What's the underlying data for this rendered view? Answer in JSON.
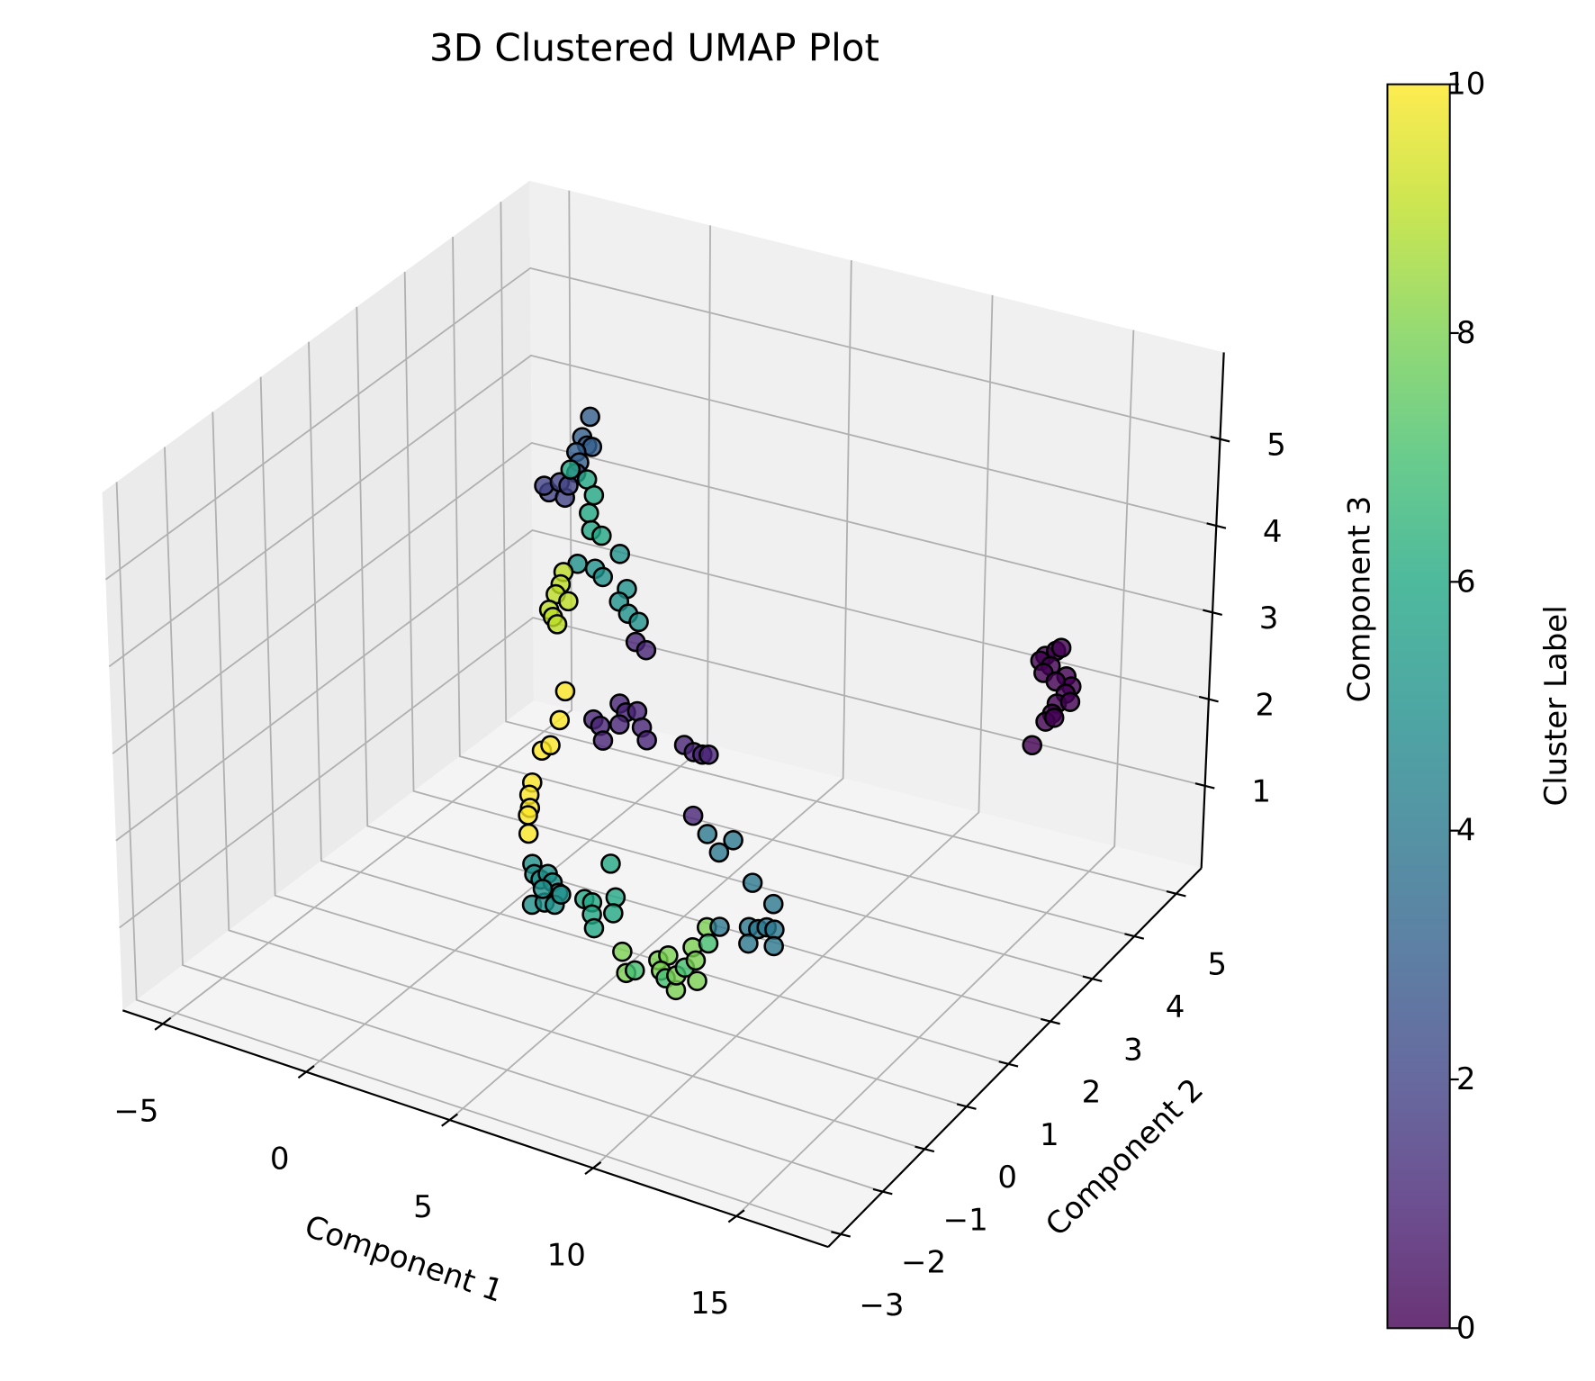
{
  "chart_data": {
    "type": "scatter3d",
    "title": "3D Clustered UMAP Plot",
    "xlabel": "Component 1",
    "ylabel": "Component 2",
    "zlabel": "Component 3",
    "xlim": [
      -6.4,
      18.2
    ],
    "ylim": [
      -3.3,
      5.6
    ],
    "zlim": [
      0.05,
      6.0
    ],
    "xticks": [
      {
        "value": -5,
        "label": "−5"
      },
      0,
      5,
      10,
      15
    ],
    "yticks": [
      {
        "value": -3,
        "label": "−3"
      },
      {
        "value": -2,
        "label": "−2"
      },
      {
        "value": -1,
        "label": "−1"
      },
      0,
      1,
      2,
      3,
      4,
      5
    ],
    "zticks": [
      1,
      2,
      3,
      4,
      5
    ],
    "grid": true,
    "alpha": 0.8,
    "colormap": [
      "#440154",
      "#482475",
      "#414487",
      "#355f8d",
      "#2a788e",
      "#21918c",
      "#22a884",
      "#44bf70",
      "#7ad151",
      "#bddf26",
      "#fde725"
    ],
    "colorbar": {
      "label": "Cluster Label",
      "lim": [
        0,
        10
      ],
      "ticks": [
        0,
        2,
        4,
        6,
        8,
        10
      ]
    },
    "x": [
      14.85,
      15.22,
      15.4,
      14.68,
      15.05,
      15.62,
      15.81,
      14.81,
      15.25,
      15.62,
      15.32,
      15.17,
      14.95,
      15.25,
      14.51,
      15.79,
      1.5,
      1.23,
      1.4,
      1.57,
      1.03,
      1.13,
      0.09,
      -0.08,
      0.64,
      0.46,
      1.03,
      0.76,
      0.83,
      1.4,
      1.64,
      1.47,
      1.55,
      1.91,
      2.55,
      1.08,
      1.69,
      1.96,
      2.8,
      2.53,
      2.85,
      3.22,
      0.59,
      0.49,
      0.32,
      0.76,
      0.09,
      0.22,
      0.37,
      3.12,
      3.49,
      2.06,
      1.87,
      1.25,
      1.55,
      0.91,
      0.81,
      0.83,
      0.76,
      0.78,
      3.05,
      3.29,
      3.39,
      3.96,
      4.18,
      4.57,
      4.74,
      4.92,
      3.96,
      6.22,
      6.56,
      6.86,
      7.08,
      3.71,
      3.78,
      4.0,
      4.25,
      4.42,
      4.62,
      3.71,
      4.15,
      4.5,
      4.72,
      4.08,
      6.42,
      5.53,
      5.8,
      6.61,
      6.54,
      5.8,
      5.88,
      6.88,
      7.03,
      7.33,
      8.14,
      8.48,
      8.24,
      8.41,
      8.78,
      8.78,
      9.07,
      9.32,
      9.44,
      9.51,
      9.79,
      9.86,
      9.21,
      9.71,
      10.13,
      10.6,
      11.31,
      12.05,
      11.24,
      11.56,
      11.85,
      12.12,
      12.12,
      11.24,
      10.23
    ],
    "y": [
      3.82,
      3.82,
      3.82,
      3.82,
      3.82,
      3.82,
      3.82,
      3.82,
      3.82,
      3.82,
      3.82,
      3.82,
      3.82,
      3.82,
      3.82,
      3.82,
      2.04,
      2.04,
      2.04,
      2.04,
      2.04,
      2.04,
      2.04,
      2.04,
      2.04,
      2.04,
      2.04,
      2.04,
      2.04,
      2.04,
      2.04,
      2.04,
      2.04,
      2.04,
      2.04,
      2.04,
      2.04,
      2.04,
      2.04,
      2.04,
      2.04,
      2.04,
      2.04,
      2.04,
      2.04,
      2.04,
      2.04,
      2.04,
      2.04,
      2.04,
      2.04,
      1.15,
      1.15,
      1.15,
      1.15,
      1.15,
      1.15,
      1.15,
      1.15,
      1.15,
      1.15,
      1.15,
      1.15,
      1.15,
      1.15,
      1.15,
      1.15,
      1.15,
      1.15,
      1.15,
      1.15,
      1.15,
      1.15,
      -0.63,
      -0.63,
      -0.63,
      -0.63,
      -0.63,
      -0.63,
      -0.63,
      -0.63,
      -0.63,
      -0.63,
      -0.63,
      -0.63,
      -0.63,
      -0.63,
      -0.63,
      -0.63,
      -0.63,
      -0.63,
      -0.63,
      -0.63,
      -0.63,
      -0.63,
      -0.63,
      -0.63,
      -0.63,
      -0.63,
      -0.63,
      -0.63,
      -0.63,
      -0.63,
      -0.63,
      -0.63,
      -0.63,
      -0.63,
      -0.63,
      -0.63,
      -0.63,
      -0.63,
      -0.63,
      -0.63,
      -0.63,
      -0.63,
      -0.63,
      -0.63,
      -0.63,
      -0.63
    ],
    "z": [
      3.09,
      3.18,
      3.23,
      3.02,
      2.99,
      2.92,
      2.82,
      2.89,
      2.83,
      2.72,
      2.58,
      2.45,
      2.34,
      2.41,
      2.03,
      2.64,
      5.46,
      5.2,
      5.12,
      5.12,
      5.01,
      4.9,
      4.46,
      4.52,
      4.45,
      4.61,
      4.77,
      4.6,
      4.79,
      4.73,
      4.57,
      4.35,
      4.16,
      4.13,
      3.98,
      3.73,
      3.73,
      3.66,
      3.6,
      3.43,
      3.32,
      3.26,
      3.59,
      3.44,
      3.31,
      3.27,
      3.11,
      3.04,
      2.97,
      3.02,
      2.96,
      2.74,
      2.39,
      1.98,
      2.07,
      1.58,
      1.43,
      1.28,
      1.19,
      0.98,
      2.51,
      2.46,
      2.3,
      2.78,
      2.7,
      2.75,
      2.58,
      2.45,
      2.54,
      2.52,
      2.47,
      2.47,
      2.49,
      1.69,
      1.58,
      1.54,
      1.63,
      1.55,
      1.45,
      1.22,
      1.29,
      1.3,
      1.44,
      1.44,
      1.97,
      1.47,
      1.46,
      1.6,
      1.41,
      1.32,
      1.17,
      1.0,
      0.77,
      0.83,
      1.03,
      1.12,
      0.92,
      0.85,
      0.75,
      0.92,
      1.04,
      1.3,
      1.16,
      0.93,
      1.58,
      1.4,
      2.81,
      2.65,
      2.48,
      2.67,
      2.25,
      2.08,
      1.73,
      1.74,
      1.79,
      1.79,
      1.6,
      1.54,
      1.63
    ],
    "cluster": [
      0,
      0,
      0,
      0,
      0,
      0,
      0,
      0,
      0,
      0,
      0,
      0,
      0,
      0,
      0,
      0,
      3,
      3,
      3,
      3,
      3,
      3,
      2,
      2,
      2,
      2,
      2,
      2,
      6,
      6,
      6,
      6,
      6,
      6,
      5,
      5,
      5,
      5,
      5,
      5,
      5,
      5,
      9,
      9,
      9,
      9,
      9,
      9,
      9,
      1,
      1,
      10,
      10,
      10,
      10,
      10,
      10,
      10,
      10,
      10,
      1,
      1,
      1,
      1,
      1,
      1,
      1,
      1,
      1,
      1,
      1,
      1,
      1,
      5,
      5,
      5,
      5,
      5,
      5,
      5,
      5,
      5,
      5,
      5,
      6,
      6,
      6,
      6,
      6,
      6,
      6,
      8,
      8,
      7,
      8,
      8,
      8,
      7,
      8,
      8,
      7,
      8,
      8,
      8,
      8,
      7,
      1,
      4,
      4,
      4,
      4,
      4,
      4,
      4,
      4,
      4,
      4,
      4,
      4
    ]
  }
}
